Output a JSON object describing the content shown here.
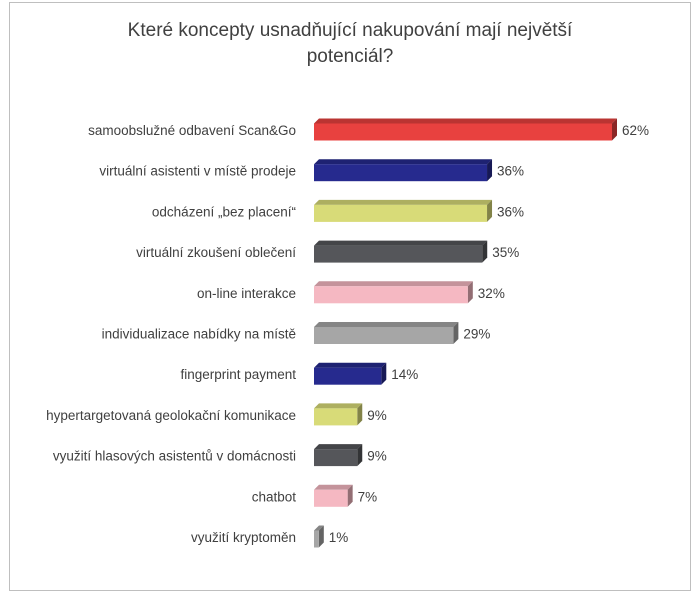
{
  "chart_data": {
    "type": "bar",
    "orientation": "horizontal",
    "style": "3d",
    "title_lines": [
      "Které koncepty usnadňující nakupování mají největší",
      "potenciál?"
    ],
    "categories": [
      "samoobslužné odbavení Scan&Go",
      "virtuální asistenti v místě prodeje",
      "odcházení „bez placení“",
      "virtuální zkoušení oblečení",
      "on-line interakce",
      "individualizace nabídky na místě",
      "fingerprint payment",
      "hypertargetovaná geolokační komunikace",
      "využití hlasových asistentů v domácnosti",
      "chatbot",
      "využití kryptoměn"
    ],
    "values": [
      62,
      36,
      36,
      35,
      32,
      29,
      14,
      9,
      9,
      7,
      1
    ],
    "data_labels": [
      "62%",
      "36%",
      "36%",
      "35%",
      "32%",
      "29%",
      "14%",
      "9%",
      "9%",
      "7%",
      "1%"
    ],
    "colors": [
      "#e8413f",
      "#262a8e",
      "#d8db78",
      "#55565a",
      "#f5b8c2",
      "#a6a6a6",
      "#262a8e",
      "#d8db78",
      "#55565a",
      "#f5b8c2",
      "#a6a6a6"
    ],
    "xlim": [
      0,
      62
    ],
    "grid": false,
    "legend": "none"
  }
}
